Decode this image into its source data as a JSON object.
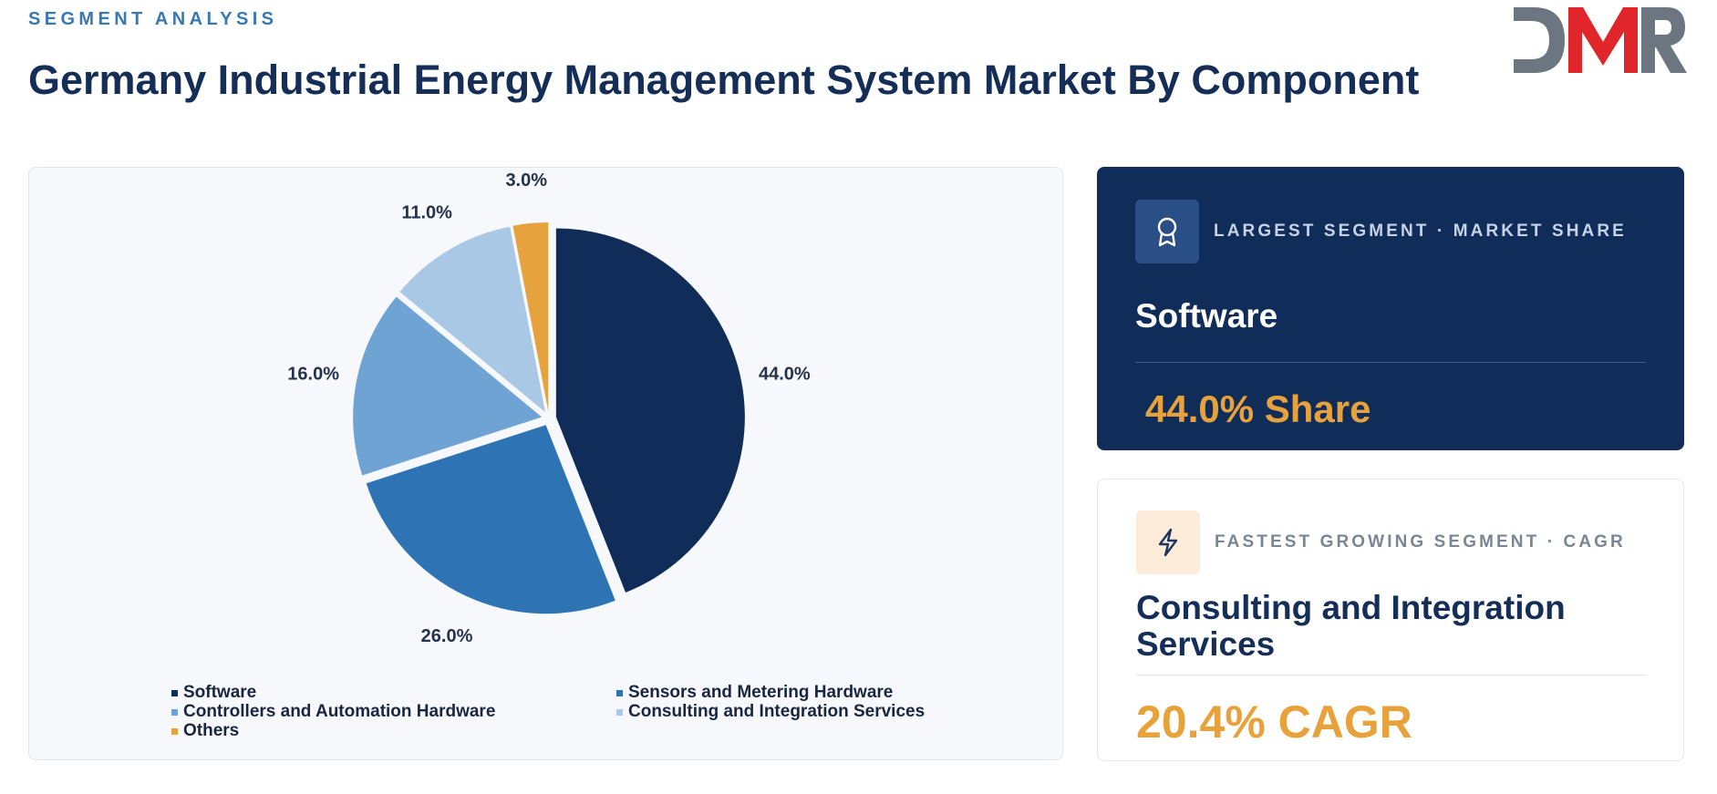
{
  "header": {
    "eyebrow": "SEGMENT ANALYSIS",
    "title": "Germany Industrial Energy Management System Market By Component"
  },
  "logo": {
    "text": "DMR",
    "colors": {
      "red": "#e0262b",
      "gray": "#6b7680"
    }
  },
  "chart_data": {
    "type": "pie",
    "categories": [
      "Software",
      "Sensors and Metering Hardware",
      "Controllers and Automation Hardware",
      "Consulting and Integration Services",
      "Others"
    ],
    "values": [
      44.0,
      26.0,
      16.0,
      11.0,
      3.0
    ],
    "labels": [
      "44.0%",
      "26.0%",
      "16.0%",
      "11.0%",
      "3.0%"
    ],
    "colors": [
      "#0f2d58",
      "#2e74b5",
      "#6ea3d4",
      "#a8c8e6",
      "#e6a23c"
    ],
    "legend_position": "bottom"
  },
  "largest_card": {
    "icon": "award-icon",
    "kicker": "LARGEST SEGMENT  ·  MARKET SHARE",
    "segment": "Software",
    "value": "44.0% Share"
  },
  "fastest_card": {
    "icon": "lightning-icon",
    "kicker": "FASTEST GROWING SEGMENT  ·  CAGR",
    "segment": "Consulting and Integration Services",
    "value": "20.4% CAGR"
  }
}
